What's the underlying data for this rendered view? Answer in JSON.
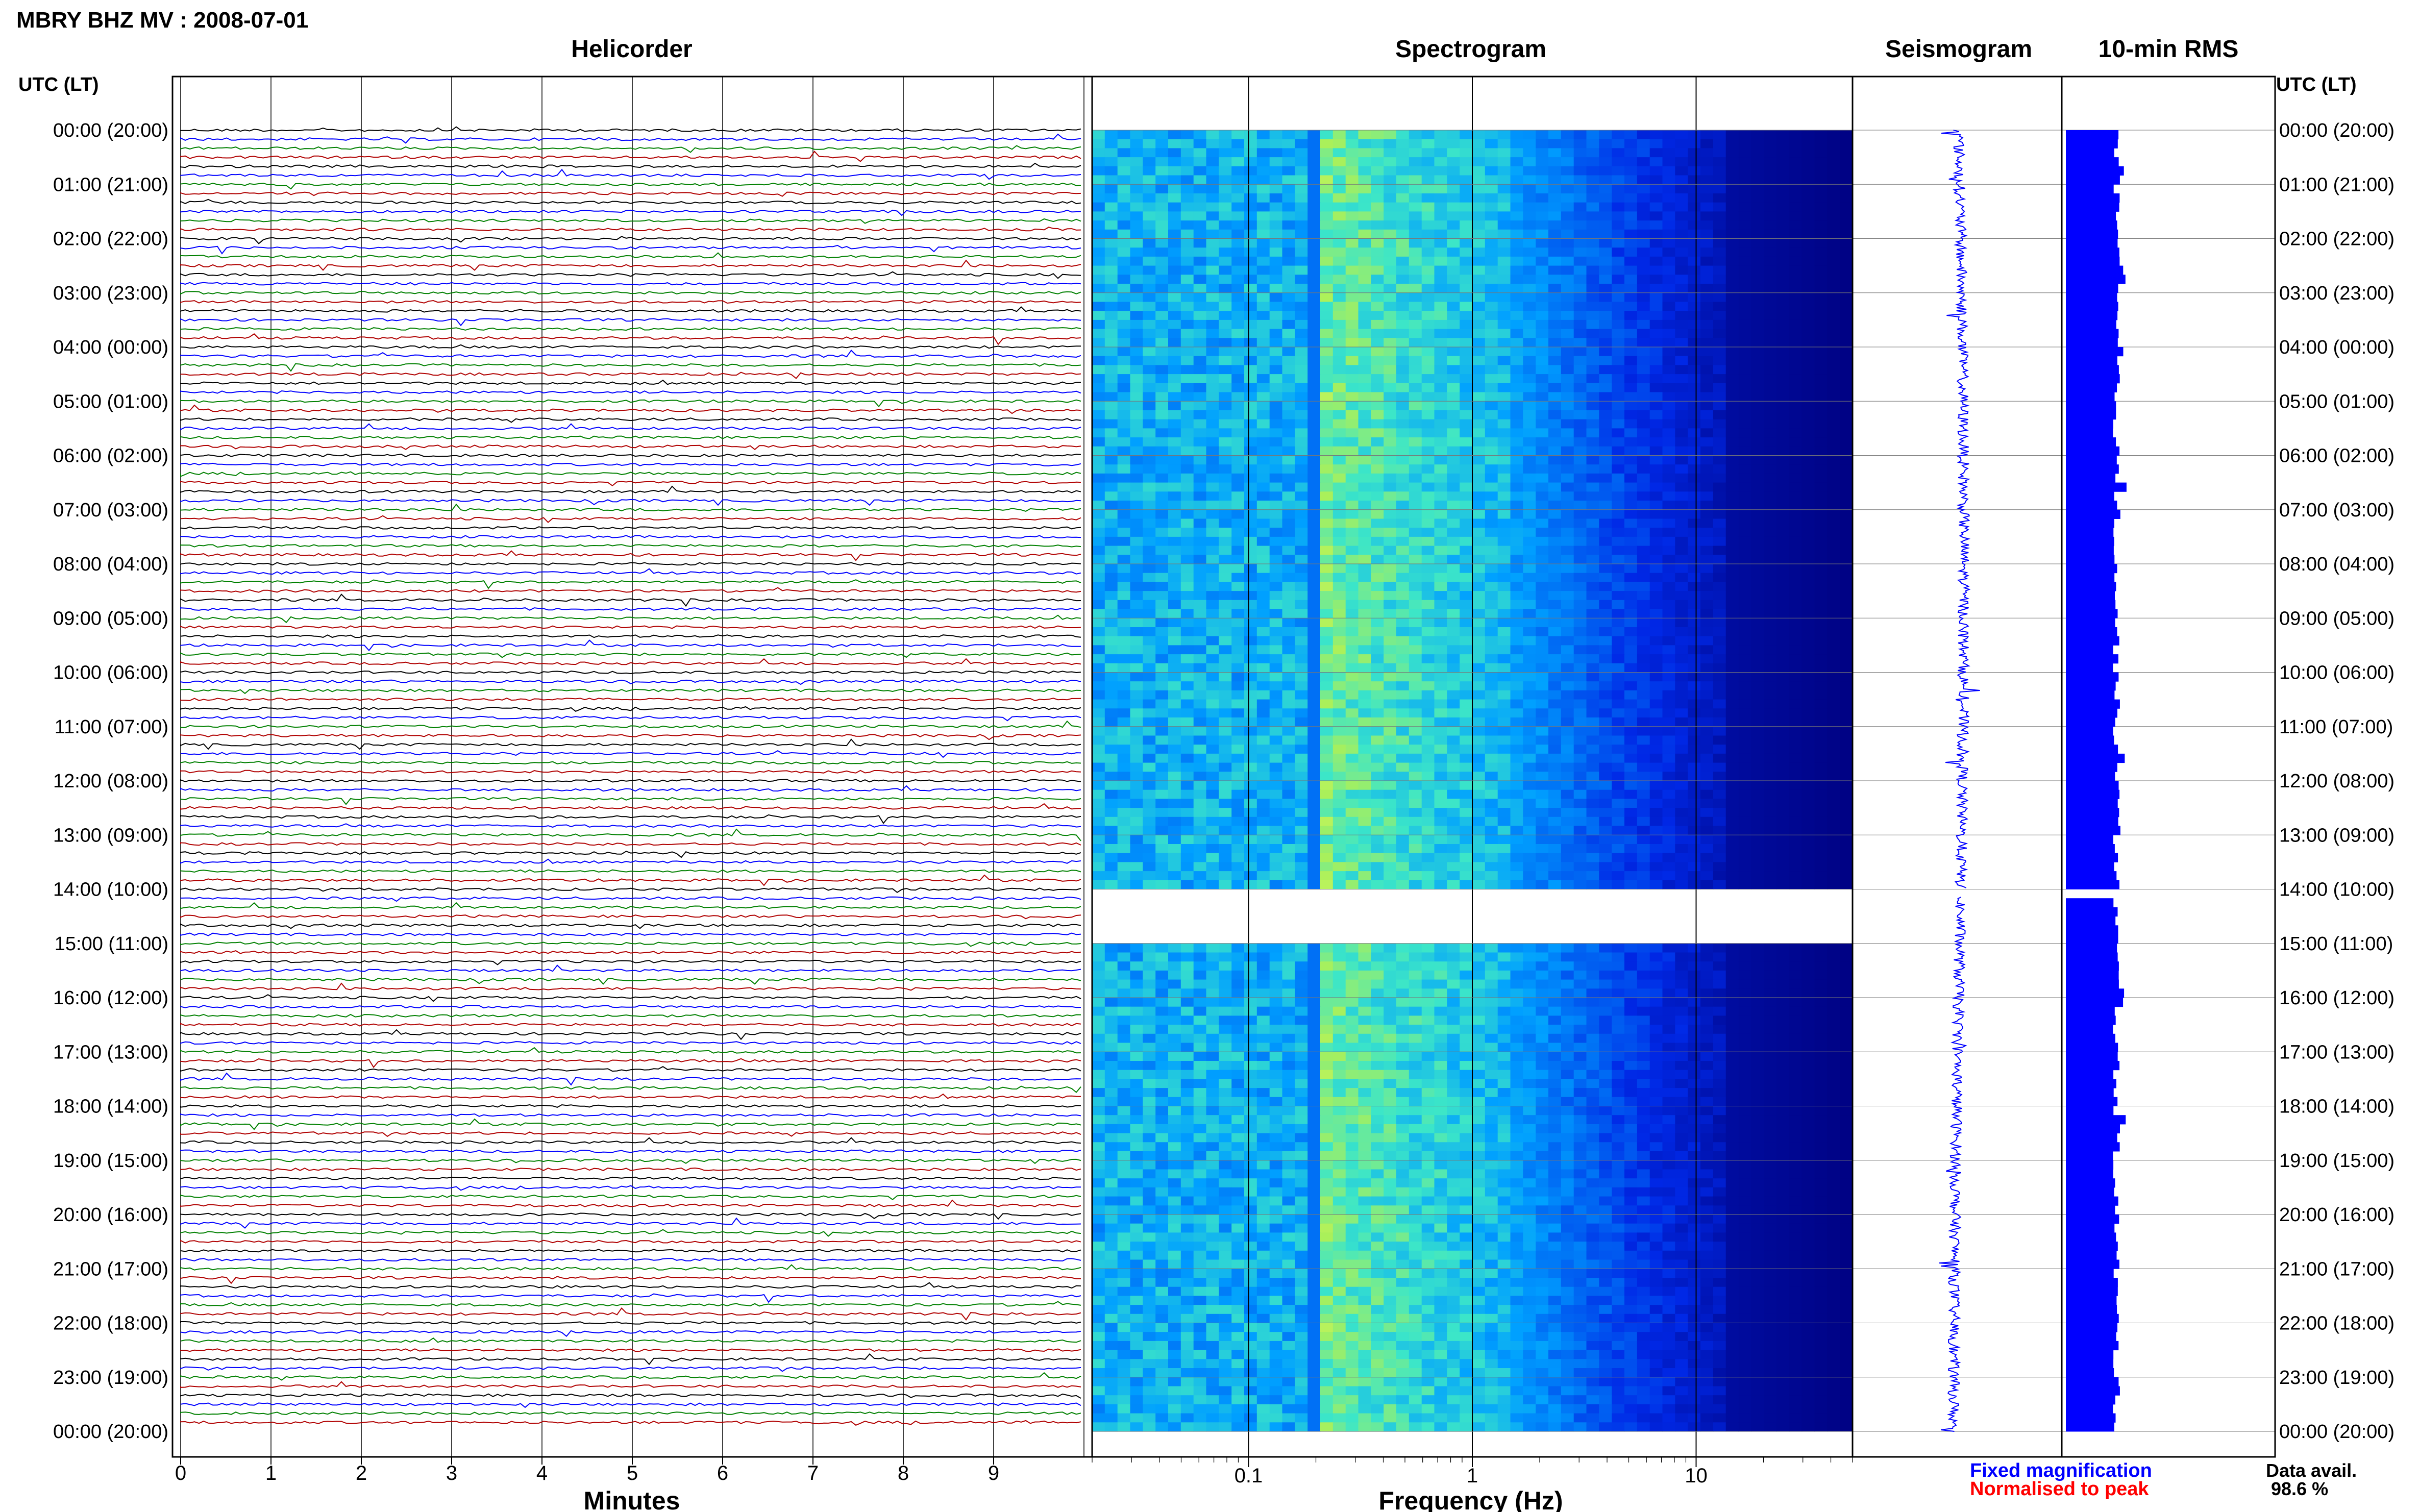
{
  "header": {
    "title": "MBRY BHZ MV : 2008-07-01"
  },
  "panels": {
    "helicorder_title": "Helicorder",
    "spectrogram_title": "Spectrogram",
    "seismogram_title": "Seismogram",
    "rms_title": "10-min RMS"
  },
  "axes": {
    "utc_label_left": "UTC (LT)",
    "utc_label_right": "UTC (LT)",
    "minutes_title": "Minutes",
    "frequency_title": "Frequency (Hz)",
    "minutes_ticks": [
      "0",
      "1",
      "2",
      "3",
      "4",
      "5",
      "6",
      "7",
      "8",
      "9"
    ],
    "frequency_ticks": [
      "0.1",
      "1",
      "10"
    ]
  },
  "legend": {
    "fixed": "Fixed magnification",
    "normalised": "Normalised to peak",
    "avail_label": "Data avail.",
    "avail_value": "98.6 %"
  },
  "colors": {
    "trace_colors": [
      "#000000",
      "#0000ff",
      "#008000",
      "#b00000"
    ],
    "rms_bar": "#0000ff",
    "spectrogram_low": "#00007f",
    "spectrogram_high": "#ffff66"
  },
  "chart_data": {
    "type": "heatmap",
    "title": "MBRY BHZ MV : 2008-07-01",
    "hour_labels": [
      "00:00 (20:00)",
      "01:00 (21:00)",
      "02:00 (22:00)",
      "03:00 (23:00)",
      "04:00 (00:00)",
      "05:00 (01:00)",
      "06:00 (02:00)",
      "07:00 (03:00)",
      "08:00 (04:00)",
      "09:00 (05:00)",
      "10:00 (06:00)",
      "11:00 (07:00)",
      "12:00 (08:00)",
      "13:00 (09:00)",
      "14:00 (10:00)",
      "15:00 (11:00)",
      "16:00 (12:00)",
      "17:00 (13:00)",
      "18:00 (14:00)",
      "19:00 (15:00)",
      "20:00 (16:00)",
      "21:00 (17:00)",
      "22:00 (18:00)",
      "23:00 (19:00)",
      "00:00 (20:00)"
    ],
    "helicorder": {
      "x_range_minutes": [
        0,
        10
      ],
      "xlabel": "Minutes",
      "rows_per_hour": 6
    },
    "spectrogram": {
      "freq_range_hz": [
        0.02,
        50
      ],
      "scale": "log",
      "xlabel": "Frequency (Hz)"
    },
    "data_gap_hour": 14,
    "data_availability_percent": 98.6
  }
}
